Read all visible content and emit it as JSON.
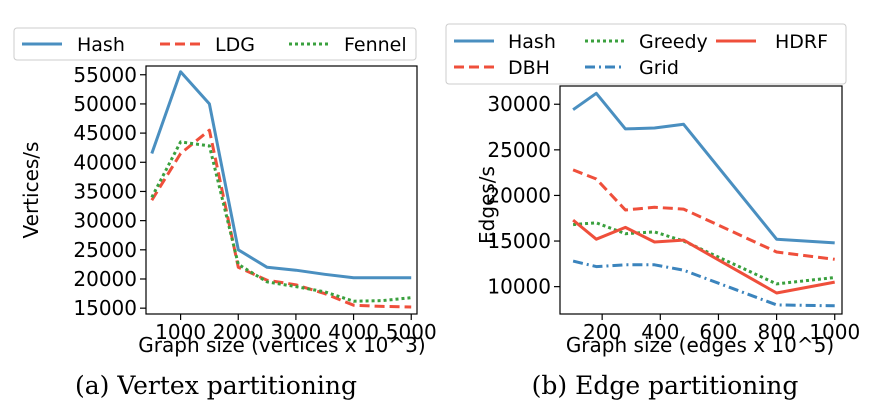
{
  "chart_data": [
    {
      "type": "line",
      "xlabel": "Graph size (vertices x 10^3)",
      "ylabel": "Vertices/s",
      "caption": "(a) Vertex partitioning",
      "xlim": [
        400,
        5100
      ],
      "ylim": [
        14000,
        56500
      ],
      "xticks": [
        1000,
        2000,
        3000,
        4000,
        5000
      ],
      "yticks": [
        15000,
        20000,
        25000,
        30000,
        35000,
        40000,
        45000,
        50000,
        55000
      ],
      "legend_location": "top",
      "x": [
        500,
        1000,
        1500,
        2000,
        2500,
        3000,
        3500,
        4000,
        4500,
        5000
      ],
      "series": [
        {
          "name": "Hash",
          "style": "solid",
          "color": "#4a8fc0",
          "values": [
            41500,
            55500,
            50000,
            25000,
            22000,
            21500,
            20800,
            20200,
            20200,
            20200
          ]
        },
        {
          "name": "LDG",
          "style": "dashed",
          "color": "#ef4f3b",
          "values": [
            33500,
            41500,
            45500,
            22000,
            19800,
            19000,
            17500,
            15500,
            15300,
            15200
          ]
        },
        {
          "name": "Fennel",
          "style": "dotted",
          "color": "#3aa03e",
          "values": [
            34000,
            43500,
            42800,
            22500,
            19500,
            18700,
            17800,
            16200,
            16300,
            16800
          ]
        }
      ]
    },
    {
      "type": "line",
      "xlabel": "Graph size (edges x 10^5)",
      "ylabel": "Edges/s",
      "caption": "(b) Edge partitioning",
      "xlim": [
        55,
        1025
      ],
      "ylim": [
        7000,
        32000
      ],
      "xticks": [
        200,
        400,
        600,
        800,
        1000
      ],
      "yticks": [
        10000,
        15000,
        20000,
        25000,
        30000
      ],
      "legend_location": "top",
      "x": [
        100,
        180,
        280,
        380,
        480,
        800,
        1000
      ],
      "series": [
        {
          "name": "Hash",
          "style": "solid",
          "color": "#4a8fc0",
          "values": [
            29400,
            31200,
            27300,
            27400,
            27800,
            15200,
            14800
          ]
        },
        {
          "name": "DBH",
          "style": "dashed",
          "color": "#ef4f3b",
          "values": [
            22800,
            21800,
            18400,
            18700,
            18500,
            13800,
            13000
          ]
        },
        {
          "name": "Greedy",
          "style": "dotted",
          "color": "#3aa03e",
          "values": [
            16800,
            17000,
            15800,
            16000,
            15000,
            10300,
            11000
          ]
        },
        {
          "name": "Grid",
          "style": "dashdot",
          "color": "#3b84bd",
          "values": [
            12800,
            12200,
            12400,
            12400,
            11800,
            8000,
            7900
          ]
        },
        {
          "name": "HDRF",
          "style": "solid",
          "color": "#ef4f3b",
          "values": [
            17300,
            15200,
            16500,
            14900,
            15100,
            9300,
            10500
          ]
        }
      ]
    }
  ]
}
